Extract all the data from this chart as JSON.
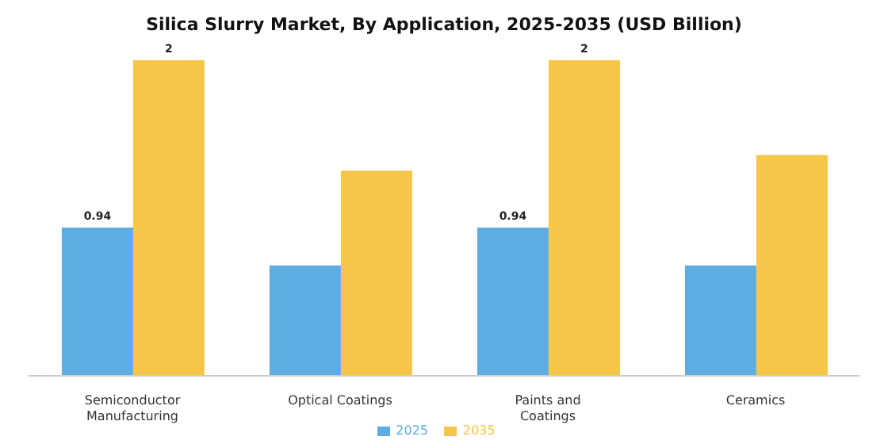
{
  "chart_data": {
    "type": "bar",
    "title": "Silica Slurry Market, By Application, 2025-2035 (USD Billion)",
    "categories": [
      "Semiconductor Manufacturing",
      "Optical Coatings",
      "Paints and Coatings",
      "Ceramics"
    ],
    "series": [
      {
        "name": "2025",
        "color": "#5dade2",
        "values": [
          0.94,
          0.7,
          0.94,
          0.7
        ],
        "value_labels": [
          "0.94",
          null,
          "0.94",
          null
        ]
      },
      {
        "name": "2035",
        "color": "#f7c548",
        "values": [
          2,
          1.3,
          2,
          1.4
        ],
        "value_labels": [
          "2",
          null,
          "2",
          null
        ]
      }
    ],
    "grid": false,
    "legend": "bottom"
  }
}
